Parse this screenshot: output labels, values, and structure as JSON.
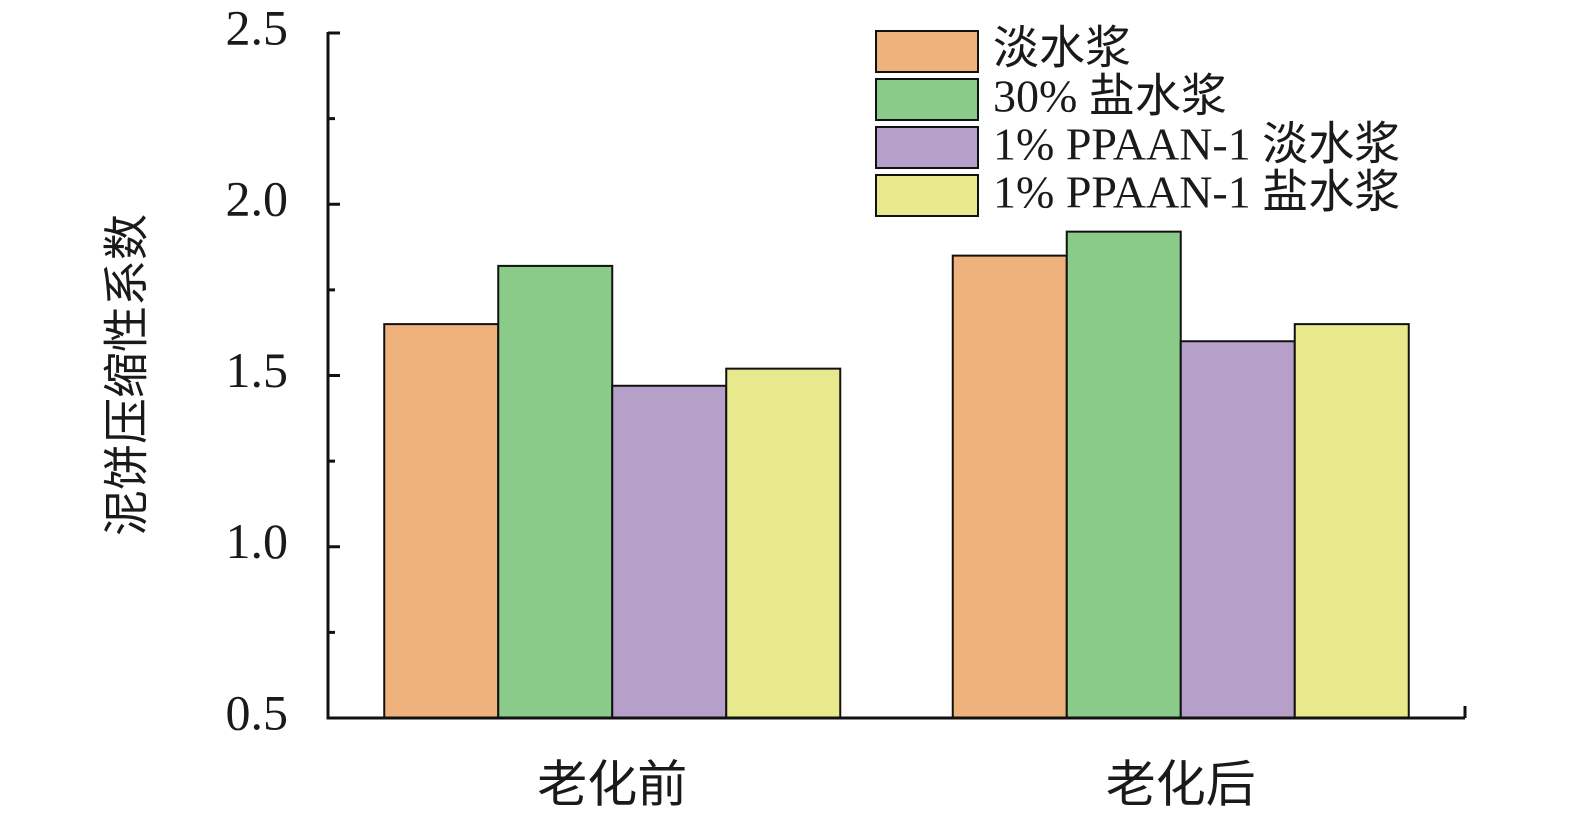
{
  "chart_data": {
    "type": "bar",
    "y_label": "泥饼压缩性系数",
    "categories": [
      "老化前",
      "老化后"
    ],
    "series": [
      {
        "name": "淡水浆",
        "color": "#f0b27c",
        "values": [
          1.65,
          1.85
        ]
      },
      {
        "name": "30% 盐水浆",
        "color": "#8bcb89",
        "values": [
          1.82,
          1.92
        ]
      },
      {
        "name": "1% PPAAN-1 淡水浆",
        "color": "#b6a0c9",
        "values": [
          1.47,
          1.6
        ]
      },
      {
        "name": "1% PPAAN-1 盐水浆",
        "color": "#e8e98c",
        "values": [
          1.52,
          1.65
        ]
      }
    ],
    "ylim": [
      0.5,
      2.5
    ],
    "yticks": [
      0.5,
      {
        "value": 1,
        "label": "1.0"
      },
      1.5,
      {
        "value": 2,
        "label": "2.0"
      },
      2.5
    ],
    "yminorticks": [
      0.75,
      1.25,
      1.75,
      2.25
    ],
    "legend": "upper right"
  }
}
